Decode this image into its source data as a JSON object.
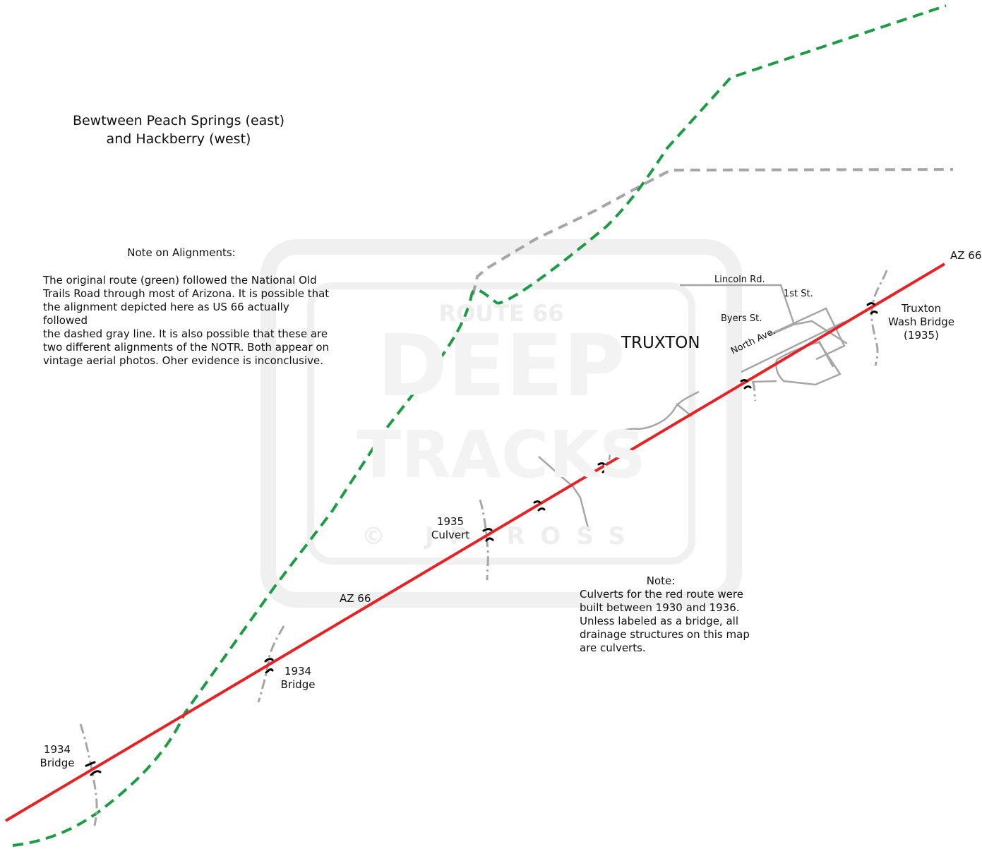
{
  "map": {
    "title_line1": "Bewtween Peach Springs (east)",
    "title_line2": "and Hackberry (west)",
    "note_alignments": {
      "heading": "Note on Alignments:",
      "body": "The original route (green) followed the National Old\nTrails Road through most of Arizona. It is possible that\nthe alignment depicted here as US 66 actually followed\nthe dashed gray line. It is also possible that these are\ntwo different alignments of the NOTR. Both appear on\nvintage aerial photos. Oher evidence is inconclusive."
    },
    "note_culverts": {
      "heading": "Note:",
      "body": "Culverts for the red route were\nbuilt between 1930 and 1936.\nUnless labeled as a bridge, all\ndrainage structures on this map\nare culverts."
    },
    "town": "TRUXTON",
    "streets": {
      "lincoln": "Lincoln Rd.",
      "first": "1st St.",
      "byers": "Byers St.",
      "north": "North Ave."
    },
    "route_labels": {
      "east": "AZ 66",
      "mid": "AZ 66"
    },
    "structures": {
      "west_bridge": "1934\nBridge",
      "mid_bridge": "1934\nBridge",
      "culvert": "1935\nCulvert",
      "truxton_wash": "Truxton\nWash Bridge\n(1935)"
    },
    "watermark": {
      "top": "ROUTE 66",
      "line1": "DEEP",
      "line2": "TRACKS",
      "credit": "© JP ROSS"
    },
    "legend_colors": {
      "current_route": "#e32326",
      "original_route": "#1e9b45",
      "possible_alignment": "#a6a6a6",
      "local_streets": "#a6a6a6",
      "drainage": "#a6a6a6",
      "structure": "#000000"
    }
  }
}
